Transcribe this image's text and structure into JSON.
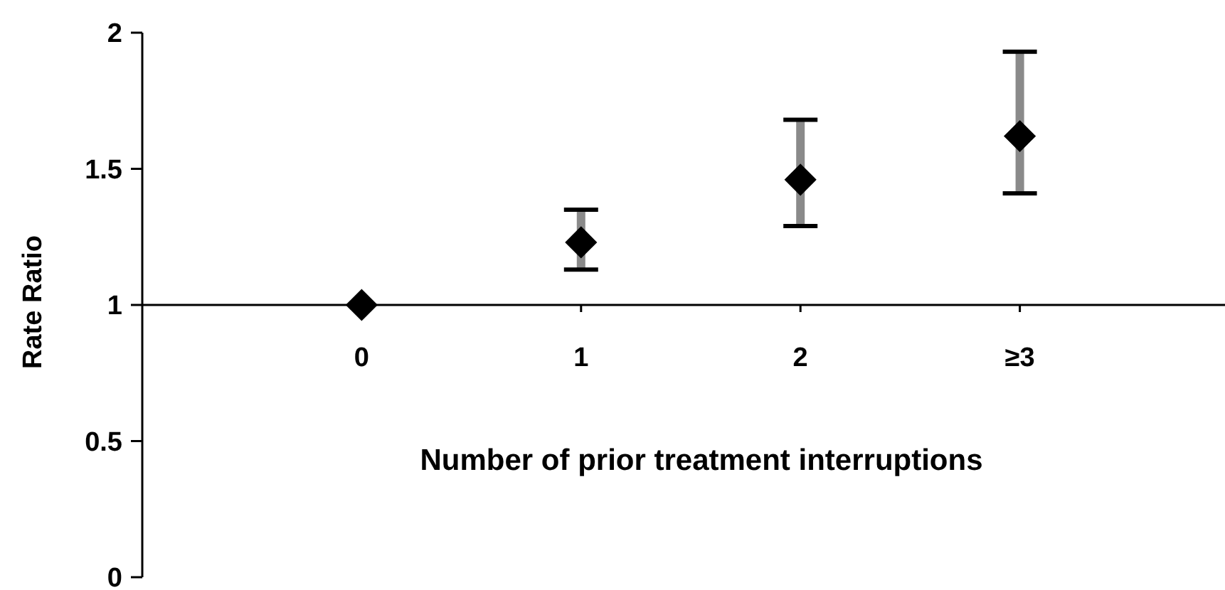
{
  "chart_data": {
    "type": "scatter",
    "xlabel": "Number of prior treatment interruptions",
    "ylabel": "Rate Ratio",
    "categories": [
      "0",
      "1",
      "2",
      "≥3"
    ],
    "series": [
      {
        "color": "#000000",
        "values": [
          1,
          1.23,
          1.46,
          1.62
        ],
        "errors": [
          null,
          [
            1.13,
            1.35
          ],
          [
            1.29,
            1.68
          ],
          [
            1.41,
            1.93
          ]
        ]
      }
    ],
    "ylim": [
      0,
      2
    ],
    "yticks": [
      0,
      0.5,
      1,
      1.5,
      2
    ],
    "marker": "diamond",
    "grid": false
  }
}
